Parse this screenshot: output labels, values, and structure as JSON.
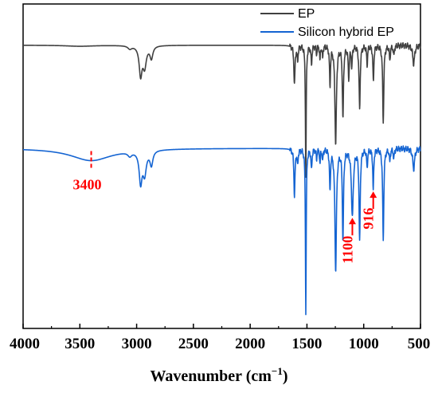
{
  "chart_data": {
    "type": "line",
    "title": "",
    "xlabel": "Wavenumber (cm",
    "xlabel_superscript": "−1",
    "xlabel_suffix": ")",
    "ylabel": "",
    "xlim": [
      4000,
      500
    ],
    "x_reversed": true,
    "y_ticks": false,
    "grid": false,
    "legend_position": "top-right",
    "x_ticks": [
      4000,
      3500,
      3000,
      2500,
      2000,
      1500,
      1000,
      500
    ],
    "x_tick_labels": [
      "4000",
      "3500",
      "3000",
      "2500",
      "2000",
      "1500",
      "1000",
      "500"
    ],
    "series": [
      {
        "name": "EP",
        "color": "#404040",
        "baseline": 100,
        "features": [
          {
            "center": 3500,
            "width": 150,
            "depth": 1
          },
          {
            "center": 3060,
            "width": 20,
            "depth": 3
          },
          {
            "center": 2965,
            "width": 15,
            "depth": 28
          },
          {
            "center": 2930,
            "width": 18,
            "depth": 20
          },
          {
            "center": 2870,
            "width": 15,
            "depth": 12
          },
          {
            "center": 1610,
            "width": 6,
            "depth": 38
          },
          {
            "center": 1582,
            "width": 5,
            "depth": 14
          },
          {
            "center": 1510,
            "width": 4,
            "depth": 128
          },
          {
            "center": 1460,
            "width": 5,
            "depth": 18
          },
          {
            "center": 1415,
            "width": 4,
            "depth": 8
          },
          {
            "center": 1385,
            "width": 4,
            "depth": 14
          },
          {
            "center": 1362,
            "width": 4,
            "depth": 12
          },
          {
            "center": 1297,
            "width": 5,
            "depth": 38
          },
          {
            "center": 1247,
            "width": 8,
            "depth": 95
          },
          {
            "center": 1183,
            "width": 6,
            "depth": 70
          },
          {
            "center": 1132,
            "width": 6,
            "depth": 30
          },
          {
            "center": 1105,
            "width": 5,
            "depth": 20
          },
          {
            "center": 1036,
            "width": 6,
            "depth": 62
          },
          {
            "center": 970,
            "width": 5,
            "depth": 18
          },
          {
            "center": 915,
            "width": 5,
            "depth": 36
          },
          {
            "center": 828,
            "width": 6,
            "depth": 74
          },
          {
            "center": 770,
            "width": 5,
            "depth": 14
          },
          {
            "center": 735,
            "width": 5,
            "depth": 10
          },
          {
            "center": 560,
            "width": 10,
            "depth": 18
          }
        ]
      },
      {
        "name": "Silicon hybrid EP",
        "color": "#1464d2",
        "baseline": 0,
        "features": [
          {
            "center": 3400,
            "width": 220,
            "depth": 12
          },
          {
            "center": 3060,
            "width": 20,
            "depth": 4
          },
          {
            "center": 2965,
            "width": 15,
            "depth": 30
          },
          {
            "center": 2930,
            "width": 18,
            "depth": 22
          },
          {
            "center": 2870,
            "width": 15,
            "depth": 14
          },
          {
            "center": 1610,
            "width": 6,
            "depth": 45
          },
          {
            "center": 1582,
            "width": 5,
            "depth": 15
          },
          {
            "center": 1510,
            "width": 4,
            "depth": 160
          },
          {
            "center": 1460,
            "width": 5,
            "depth": 20
          },
          {
            "center": 1415,
            "width": 4,
            "depth": 10
          },
          {
            "center": 1385,
            "width": 4,
            "depth": 14
          },
          {
            "center": 1362,
            "width": 4,
            "depth": 12
          },
          {
            "center": 1297,
            "width": 5,
            "depth": 40
          },
          {
            "center": 1247,
            "width": 8,
            "depth": 118
          },
          {
            "center": 1183,
            "width": 6,
            "depth": 88
          },
          {
            "center": 1100,
            "width": 10,
            "depth": 65
          },
          {
            "center": 1036,
            "width": 6,
            "depth": 90
          },
          {
            "center": 970,
            "width": 5,
            "depth": 18
          },
          {
            "center": 916,
            "width": 5,
            "depth": 40
          },
          {
            "center": 828,
            "width": 6,
            "depth": 88
          },
          {
            "center": 770,
            "width": 5,
            "depth": 12
          },
          {
            "center": 735,
            "width": 5,
            "depth": 10
          },
          {
            "center": 560,
            "width": 10,
            "depth": 20
          }
        ]
      }
    ],
    "annotations": [
      {
        "text": "3400",
        "x": 3400,
        "marker": "dashed-tick",
        "color": "#ff0000"
      },
      {
        "text": "1100",
        "x": 1100,
        "marker": "arrow-up",
        "rotated": true,
        "color": "#ff0000"
      },
      {
        "text": "916",
        "x": 916,
        "marker": "arrow-up",
        "rotated": true,
        "color": "#ff0000"
      }
    ]
  }
}
